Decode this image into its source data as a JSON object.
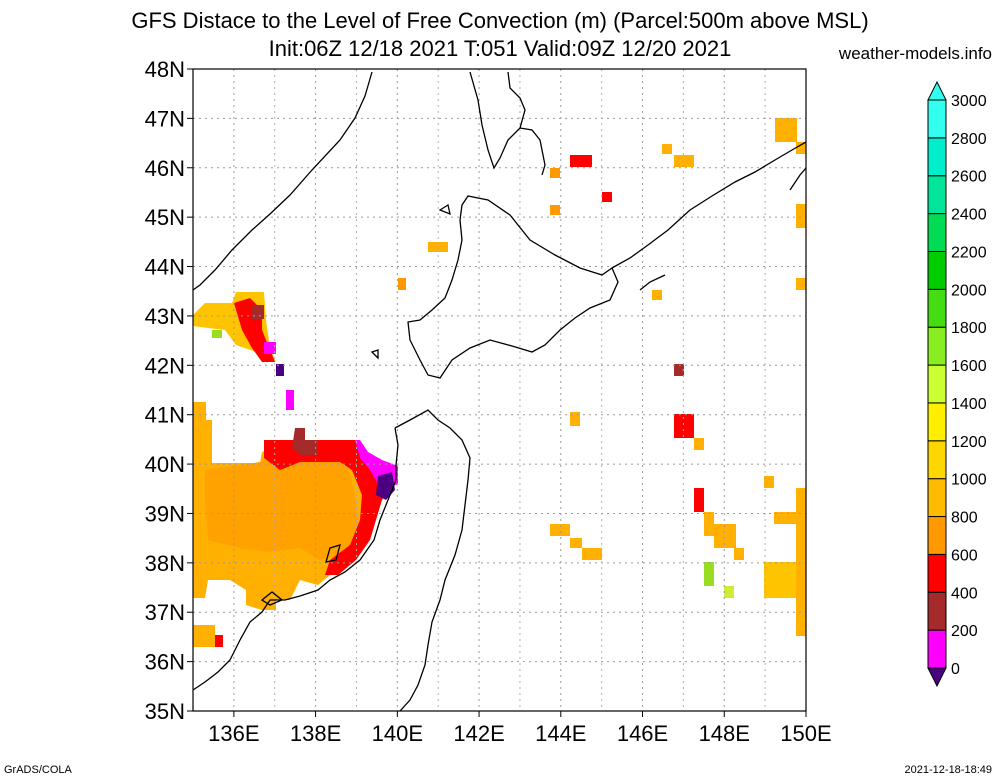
{
  "header": {
    "title": "GFS Distace to the Level of Free Convection (m) (Parcel:500m above MSL)",
    "subtitle": "Init:06Z 12/18 2021 T:051 Valid:09Z 12/20 2021",
    "site": "weather-models.info"
  },
  "footer": {
    "left": "GrADS/COLA",
    "right": "2021-12-18-18:49"
  },
  "map": {
    "lon_range": [
      135,
      150
    ],
    "lat_range": [
      35,
      48
    ],
    "lat_ticks": [
      "35N",
      "36N",
      "37N",
      "38N",
      "39N",
      "40N",
      "41N",
      "42N",
      "43N",
      "44N",
      "45N",
      "46N",
      "47N",
      "48N"
    ],
    "lon_ticks": [
      "136E",
      "138E",
      "140E",
      "142E",
      "144E",
      "146E",
      "148E",
      "150E"
    ],
    "grid": true
  },
  "colorbar": {
    "labels": [
      "0",
      "200",
      "400",
      "600",
      "800",
      "1000",
      "1200",
      "1400",
      "1600",
      "1800",
      "2000",
      "2200",
      "2400",
      "2600",
      "2800",
      "3000"
    ],
    "colors": [
      "#4b0082",
      "#ff00ff",
      "#a52a2a",
      "#ff0000",
      "#ff9900",
      "#ffbb00",
      "#ffd700",
      "#ffee00",
      "#ccff33",
      "#88ee22",
      "#44dd11",
      "#00cc00",
      "#00dd55",
      "#00e599",
      "#00eecc",
      "#33ffee"
    ]
  },
  "chart_data": {
    "type": "heatmap",
    "title": "GFS Distace to the Level of Free Convection (m) (Parcel:500m above MSL)",
    "subtitle": "Init:06Z 12/18 2021 T:051 Valid:09Z 12/20 2021",
    "units": "m",
    "bounds": [
      0,
      3000
    ],
    "levels": [
      0,
      200,
      400,
      600,
      800,
      1000,
      1200,
      1400,
      1600,
      1800,
      2000,
      2200,
      2400,
      2600,
      2800,
      3000
    ],
    "cells": [
      {
        "lon": [
          135.0,
          136.6
        ],
        "lat": [
          39.0,
          41.0
        ],
        "v": 900
      },
      {
        "lon": [
          135.0,
          139.0
        ],
        "lat": [
          37.8,
          40.0
        ],
        "v": 850
      },
      {
        "lon": [
          135.0,
          136.8
        ],
        "lat": [
          36.6,
          37.8
        ],
        "v": 950
      },
      {
        "lon": [
          136.2,
          138.8
        ],
        "lat": [
          39.0,
          40.5
        ],
        "v": 900
      },
      {
        "lon": [
          138.4,
          139.4
        ],
        "lat": [
          38.0,
          40.2
        ],
        "v": 550
      },
      {
        "lon": [
          137.2,
          139.4
        ],
        "lat": [
          39.9,
          40.5
        ],
        "v": 550
      },
      {
        "lon": [
          139.0,
          139.8
        ],
        "lat": [
          39.5,
          40.2
        ],
        "v": 150
      },
      {
        "lon": [
          139.3,
          139.9
        ],
        "lat": [
          39.2,
          39.8
        ],
        "v": 50
      },
      {
        "lon": [
          136.8,
          137.8
        ],
        "lat": [
          37.0,
          38.0
        ],
        "v": 900
      },
      {
        "lon": [
          135.3,
          135.8
        ],
        "lat": [
          36.3,
          36.8
        ],
        "v": 900
      },
      {
        "lon": [
          135.0,
          136.7
        ],
        "lat": [
          42.7,
          43.2
        ],
        "v": 1000
      },
      {
        "lon": [
          136.0,
          136.7
        ],
        "lat": [
          42.3,
          43.5
        ],
        "v": 600
      },
      {
        "lon": [
          136.6,
          137.0
        ],
        "lat": [
          42.2,
          43.1
        ],
        "v": 400
      },
      {
        "lon": [
          136.9,
          137.4
        ],
        "lat": [
          42.0,
          42.5
        ],
        "v": 150
      },
      {
        "lon": [
          137.2,
          137.4
        ],
        "lat": [
          41.1,
          41.5
        ],
        "v": 150
      },
      {
        "lon": [
          144.0,
          144.4
        ],
        "lat": [
          46.0,
          46.2
        ],
        "v": 600
      },
      {
        "lon": [
          145.0,
          145.2
        ],
        "lat": [
          45.2,
          45.4
        ],
        "v": 600
      },
      {
        "lon": [
          146.0,
          146.6
        ],
        "lat": [
          46.0,
          46.3
        ],
        "v": 1000
      },
      {
        "lon": [
          149.4,
          150.0
        ],
        "lat": [
          46.5,
          47.0
        ],
        "v": 950
      },
      {
        "lon": [
          147.8,
          149.3
        ],
        "lat": [
          37.6,
          39.2
        ],
        "v": 1000
      },
      {
        "lon": [
          149.3,
          150.0
        ],
        "lat": [
          36.5,
          39.5
        ],
        "v": 1000
      },
      {
        "lon": [
          147.6,
          147.8
        ],
        "lat": [
          37.5,
          38.0
        ],
        "v": 1600
      },
      {
        "lon": [
          148.0,
          148.2
        ],
        "lat": [
          37.2,
          37.4
        ],
        "v": 1600
      },
      {
        "lon": [
          143.8,
          144.8
        ],
        "lat": [
          38.1,
          38.7
        ],
        "v": 1000
      },
      {
        "lon": [
          146.8,
          147.4
        ],
        "lat": [
          40.5,
          41.0
        ],
        "v": 600
      }
    ]
  }
}
